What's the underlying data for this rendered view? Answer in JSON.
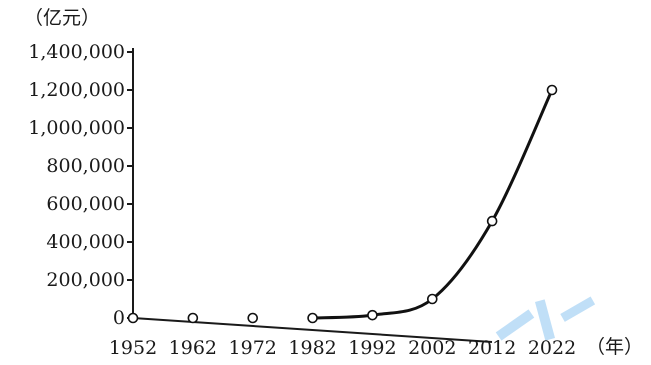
{
  "chart_data": {
    "type": "line",
    "y_unit_label": "（亿元）",
    "x_unit_label": "（年）",
    "x": [
      1952,
      1962,
      1972,
      1982,
      1992,
      2002,
      2012,
      2022
    ],
    "x_tick_labels": [
      "1952",
      "1962",
      "1972",
      "1982",
      "1992",
      "2002",
      "2012",
      "2022"
    ],
    "series": [
      {
        "values": [
          0,
          0,
          0,
          0,
          15000,
          100000,
          510000,
          1200000
        ]
      }
    ],
    "y_ticks": [
      0,
      200000,
      400000,
      600000,
      800000,
      1000000,
      1200000,
      1400000
    ],
    "y_tick_labels": [
      "0",
      "200,000",
      "400,000",
      "600,000",
      "800,000",
      "1,000,000",
      "1,200,000",
      "1,400,000"
    ],
    "ylim": [
      0,
      1400000
    ],
    "grid": false,
    "legend": "none",
    "colors": {
      "line": "#111111",
      "axis": "#1a1a1a"
    }
  }
}
